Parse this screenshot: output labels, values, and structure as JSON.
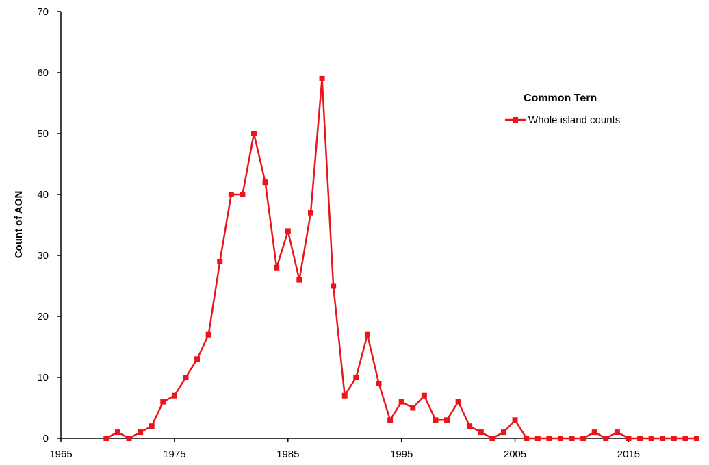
{
  "chart_data": {
    "type": "line",
    "title": "",
    "xlabel": "",
    "ylabel": "Count of AON",
    "xlim": [
      1965,
      2021
    ],
    "ylim": [
      0,
      70
    ],
    "x_ticks": [
      1965,
      1975,
      1985,
      1995,
      2005,
      2015
    ],
    "y_ticks": [
      0,
      10,
      20,
      30,
      40,
      50,
      60,
      70
    ],
    "grid": false,
    "legend": {
      "title": "Common Tern",
      "placement": "top-right"
    },
    "series": [
      {
        "name": "Whole island counts",
        "color": "#e8151b",
        "marker": "square",
        "x": [
          1969,
          1970,
          1971,
          1972,
          1973,
          1974,
          1975,
          1976,
          1977,
          1978,
          1979,
          1980,
          1981,
          1982,
          1983,
          1984,
          1985,
          1986,
          1987,
          1988,
          1989,
          1990,
          1991,
          1992,
          1993,
          1994,
          1995,
          1996,
          1997,
          1998,
          1999,
          2000,
          2001,
          2002,
          2003,
          2004,
          2005,
          2006,
          2007,
          2008,
          2009,
          2010,
          2011,
          2012,
          2013,
          2014,
          2015,
          2016,
          2017,
          2018,
          2019,
          2020,
          2021
        ],
        "values": [
          0,
          1,
          0,
          1,
          2,
          6,
          7,
          10,
          13,
          17,
          29,
          40,
          40,
          50,
          42,
          28,
          34,
          26,
          37,
          59,
          25,
          7,
          10,
          17,
          9,
          3,
          6,
          5,
          7,
          3,
          3,
          6,
          2,
          1,
          0,
          1,
          3,
          0,
          0,
          0,
          0,
          0,
          0,
          1,
          0,
          1,
          0,
          0,
          0,
          0,
          0,
          0,
          0
        ]
      }
    ]
  }
}
